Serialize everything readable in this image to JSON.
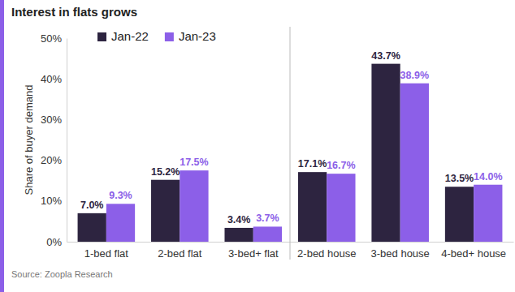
{
  "chart_data": {
    "type": "bar",
    "title": "Interest in flats grows",
    "ylabel": "Share of buyer demand",
    "source": "Source: Zoopla Research",
    "categories": [
      "1-bed flat",
      "2-bed flat",
      "3-bed+ flat",
      "2-bed house",
      "3-bed house",
      "4-bed+ house"
    ],
    "series": [
      {
        "name": "Jan-22",
        "color": "#2d2440",
        "values": [
          7.0,
          15.2,
          3.4,
          17.1,
          43.7,
          13.5
        ],
        "value_labels": [
          "7.0%",
          "15.2%",
          "3.4%",
          "17.1%",
          "43.7%",
          "13.5%"
        ]
      },
      {
        "name": "Jan-23",
        "color": "#8c5fe8",
        "values": [
          9.3,
          17.5,
          3.7,
          16.7,
          38.9,
          14.0
        ],
        "value_labels": [
          "9.3%",
          "17.5%",
          "3.7%",
          "16.7%",
          "38.9%",
          "14.0%"
        ]
      }
    ],
    "ylim": [
      0,
      50
    ],
    "yticks": [
      {
        "value": 0,
        "label": "0%"
      },
      {
        "value": 10,
        "label": "10%"
      },
      {
        "value": 20,
        "label": "20%"
      },
      {
        "value": 30,
        "label": "30%"
      },
      {
        "value": 40,
        "label": "40%"
      },
      {
        "value": 50,
        "label": "50%"
      }
    ],
    "grid": false,
    "legend": "top-left",
    "data_labels": true
  }
}
